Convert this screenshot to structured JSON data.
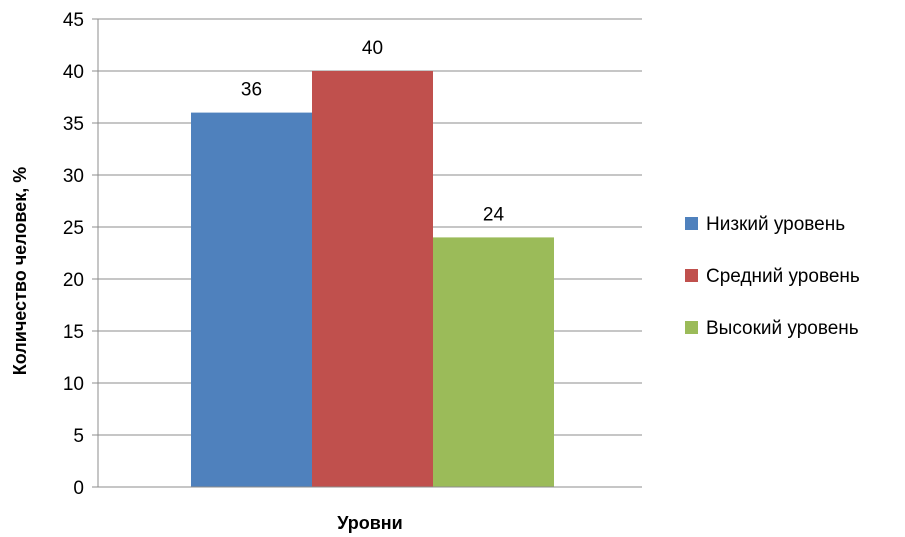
{
  "chart_data": {
    "type": "bar",
    "title": "",
    "xlabel": "Уровни",
    "ylabel": "Количество человек, %",
    "ylim": [
      0,
      45
    ],
    "yticks": [
      0,
      5,
      10,
      15,
      20,
      25,
      30,
      35,
      40,
      45
    ],
    "grid": true,
    "legend_position": "right",
    "categories": [
      ""
    ],
    "series": [
      {
        "name": "Низкий уровень",
        "values": [
          36
        ],
        "color": "#4f81bd",
        "label": "36"
      },
      {
        "name": "Средний уровень",
        "values": [
          40
        ],
        "color": "#c0504d",
        "label": "40"
      },
      {
        "name": "Высокий уровень",
        "values": [
          24
        ],
        "color": "#9bbb59",
        "label": "24"
      }
    ]
  }
}
